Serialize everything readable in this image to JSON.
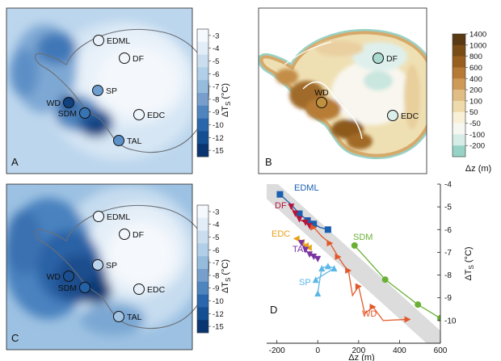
{
  "panels": {
    "A": {
      "letter": "A",
      "sites": [
        {
          "name": "EDML",
          "color": "#e9f2fb"
        },
        {
          "name": "DF",
          "color": "#f1f6fc"
        },
        {
          "name": "SP",
          "color": "#6c9ed0"
        },
        {
          "name": "WD",
          "color": "#11427f"
        },
        {
          "name": "SDM",
          "color": "#3873b3"
        },
        {
          "name": "EDC",
          "color": "#eef5fb"
        },
        {
          "name": "TAL",
          "color": "#5a91c8"
        }
      ]
    },
    "B": {
      "letter": "B",
      "sites": [
        {
          "name": "DF",
          "color": "#a9d9cf"
        },
        {
          "name": "WD",
          "color": "#c0913f"
        },
        {
          "name": "EDC",
          "color": "#dbeeea"
        }
      ]
    },
    "C": {
      "letter": "C",
      "sites": [
        {
          "name": "EDML",
          "color": "#ecf3fb"
        },
        {
          "name": "DF",
          "color": "#f2f7fc"
        },
        {
          "name": "SP",
          "color": "#bcd5ec"
        },
        {
          "name": "WD",
          "color": "#1b4e8e"
        },
        {
          "name": "SDM",
          "color": "#2561a6"
        },
        {
          "name": "EDC",
          "color": "#e7f0f9"
        },
        {
          "name": "TAL",
          "color": "#a3c4e4"
        }
      ]
    },
    "D": {
      "letter": "D"
    }
  },
  "colorbar_dts": {
    "label_main": "ΔT",
    "label_sub": "S",
    "label_unit": "(°C)",
    "ticks": [
      "-3",
      "-4",
      "-5",
      "-6",
      "-7",
      "-8",
      "-9",
      "-10",
      "-12",
      "-15"
    ],
    "colors": [
      "#f5f8fc",
      "#e2edf7",
      "#cadeef",
      "#b1cfe8",
      "#96bcdd",
      "#779ecc",
      "#4f85bf",
      "#2a66ab",
      "#164f91",
      "#0b3570"
    ]
  },
  "colorbar_dz": {
    "label": "Δz (m)",
    "ticks": [
      "1400",
      "1000",
      "800",
      "600",
      "400",
      "200",
      "100",
      "50",
      "-50",
      "-100",
      "-200"
    ],
    "colors": [
      "#5a3a12",
      "#7a4c16",
      "#995f20",
      "#b67a36",
      "#ce9a58",
      "#e0bd84",
      "#efdaab",
      "#f8f1d8",
      "#f7f7f2",
      "#d5ece7",
      "#98d2c6"
    ]
  },
  "chart_data": {
    "type": "scatter",
    "xlabel": "Δz (m)",
    "ylabel": "ΔT",
    "ylabel_sub": "S",
    "ylabel_unit": "(°C)",
    "xlim": [
      -250,
      600
    ],
    "ylim": [
      -11,
      -4
    ],
    "xticks": [
      -200,
      0,
      200,
      400,
      600
    ],
    "yticks": [
      -4,
      -5,
      -6,
      -7,
      -8,
      -9,
      -10
    ],
    "series": [
      {
        "name": "EDML",
        "color": "#1a5fb0",
        "marker": "square",
        "x": [
          -185,
          -130,
          -90,
          -50,
          -20,
          10,
          50
        ],
        "y": [
          -4.45,
          -4.9,
          -5.3,
          -5.6,
          -5.75,
          -5.9,
          -6.0
        ]
      },
      {
        "name": "DF",
        "color": "#b5153b",
        "marker": "triangle-down",
        "x": [
          -130,
          -110,
          -90,
          -60,
          -40
        ],
        "y": [
          -5.0,
          -5.3,
          -5.55,
          -5.7,
          -5.85
        ]
      },
      {
        "name": "EDC",
        "color": "#e8a21c",
        "marker": "triangle-left",
        "x": [
          -105,
          -80,
          -60,
          -45
        ],
        "y": [
          -6.4,
          -6.55,
          -6.7,
          -6.8
        ]
      },
      {
        "name": "TAL",
        "color": "#7a35a3",
        "marker": "triangle-down",
        "x": [
          -80,
          -60,
          -40,
          -20,
          0
        ],
        "y": [
          -6.6,
          -6.9,
          -7.1,
          -7.2,
          -7.3
        ]
      },
      {
        "name": "SP",
        "color": "#5cb6e6",
        "marker": "triangle-up",
        "x": [
          0,
          10,
          20,
          50,
          80,
          -10
        ],
        "y": [
          -8.8,
          -8.2,
          -7.7,
          -7.6,
          -7.7,
          -8.2
        ]
      },
      {
        "name": "SDM",
        "color": "#6ab036",
        "marker": "circle",
        "x": [
          600,
          490,
          330,
          180
        ],
        "y": [
          -9.9,
          -9.3,
          -8.2,
          -6.7
        ]
      },
      {
        "name": "WD",
        "color": "#e2582a",
        "marker": "triangle-right",
        "x": [
          440,
          320,
          270,
          230,
          200,
          170,
          150,
          130,
          100,
          80,
          60,
          20,
          -20
        ],
        "y": [
          -9.95,
          -10.0,
          -9.4,
          -9.7,
          -8.5,
          -8.9,
          -7.8,
          -7.6,
          -7.2,
          -6.9,
          -6.6,
          -6.3,
          -5.9
        ]
      }
    ],
    "trend_band": {
      "x": [
        -250,
        600
      ],
      "y_center": [
        -4.1,
        -11.0
      ],
      "halfwidth": 0.55
    }
  }
}
